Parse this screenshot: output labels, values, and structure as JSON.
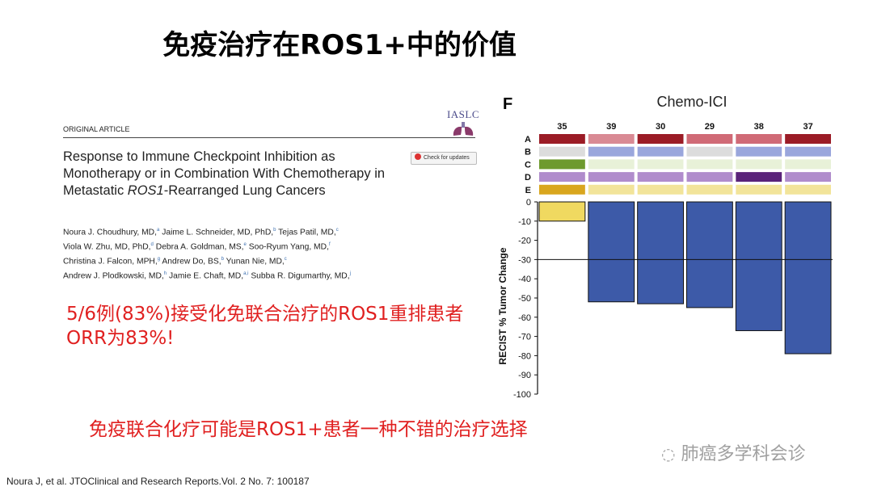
{
  "slide": {
    "title": "免疫治疗在ROS1+中的价值",
    "note_1": "5/6例(83%)接受化免联合治疗的ROS1重排患者ORR为83%!",
    "note_2": "免疫联合化疗可能是ROS1+患者一种不错的治疗选择",
    "citation": "Noura J, et al. JTOClinical and Research Reports.Vol. 2 No. 7: 100187",
    "watermark": "肺癌多学科会诊"
  },
  "paper": {
    "journal_logo": "IASLC",
    "article_type": "ORIGINAL ARTICLE",
    "title_before": "Response to Immune Checkpoint Inhibition as Monotherapy or in Combination With Chemotherapy in Metastatic ",
    "title_italic": "ROS1",
    "title_after": "-Rearranged Lung Cancers",
    "updates_badge": "Check for updates",
    "authors": [
      {
        "name": "Noura J. Choudhury, MD,",
        "aff": "a"
      },
      {
        "name": "Jaime L. Schneider, MD, PhD,",
        "aff": "b"
      },
      {
        "name": "Tejas Patil, MD,",
        "aff": "c"
      },
      {
        "name": "Viola W. Zhu, MD, PhD,",
        "aff": "d"
      },
      {
        "name": "Debra A. Goldman, MS,",
        "aff": "e"
      },
      {
        "name": "Soo-Ryum Yang, MD,",
        "aff": "f"
      },
      {
        "name": "Christina J. Falcon, MPH,",
        "aff": "g"
      },
      {
        "name": "Andrew Do, BS,",
        "aff": "b"
      },
      {
        "name": "Yunan Nie, MD,",
        "aff": "c"
      },
      {
        "name": "Andrew J. Plodkowski, MD,",
        "aff": "h"
      },
      {
        "name": "Jamie E. Chaft, MD,",
        "aff": "a,i"
      },
      {
        "name": "Subba R. Digumarthy, MD,",
        "aff": "j"
      }
    ]
  },
  "chart_data": {
    "type": "bar",
    "panel_label": "F",
    "title": "Chemo-ICI",
    "ylabel": "RECIST % Tumor Change",
    "xlabel": "",
    "ylim": [
      -100,
      0
    ],
    "yticks": [
      0,
      -10,
      -20,
      -30,
      -40,
      -50,
      -60,
      -70,
      -80,
      -90,
      -100
    ],
    "reference_line": -30,
    "grid": false,
    "categories": [
      "35",
      "39",
      "30",
      "29",
      "38",
      "37"
    ],
    "values": [
      -10,
      -52,
      -53,
      -55,
      -67,
      -79
    ],
    "bar_colors": [
      "#f0d960",
      "#3d5aa8",
      "#3d5aa8",
      "#3d5aa8",
      "#3d5aa8",
      "#3d5aa8"
    ],
    "annotation_rows": [
      {
        "label": "A",
        "colors": [
          "#9b1c26",
          "#d98a94",
          "#9b1c26",
          "#d06a76",
          "#d06a76",
          "#9b1c26"
        ]
      },
      {
        "label": "B",
        "colors": [
          "#dcdcdc",
          "#9aa6dc",
          "#9aa6dc",
          "#dcdcdc",
          "#9aa6dc",
          "#9aa6dc"
        ]
      },
      {
        "label": "C",
        "colors": [
          "#6e9a2e",
          "#e8f1d8",
          "#e8f1d8",
          "#e8f1d8",
          "#e8f1d8",
          "#e8f1d8"
        ]
      },
      {
        "label": "D",
        "colors": [
          "#b08ccc",
          "#b08ccc",
          "#b08ccc",
          "#b08ccc",
          "#5a237a",
          "#b08ccc"
        ]
      },
      {
        "label": "E",
        "colors": [
          "#d9a61e",
          "#f2e49a",
          "#f2e49a",
          "#f2e49a",
          "#f2e49a",
          "#f2e49a"
        ]
      }
    ]
  }
}
